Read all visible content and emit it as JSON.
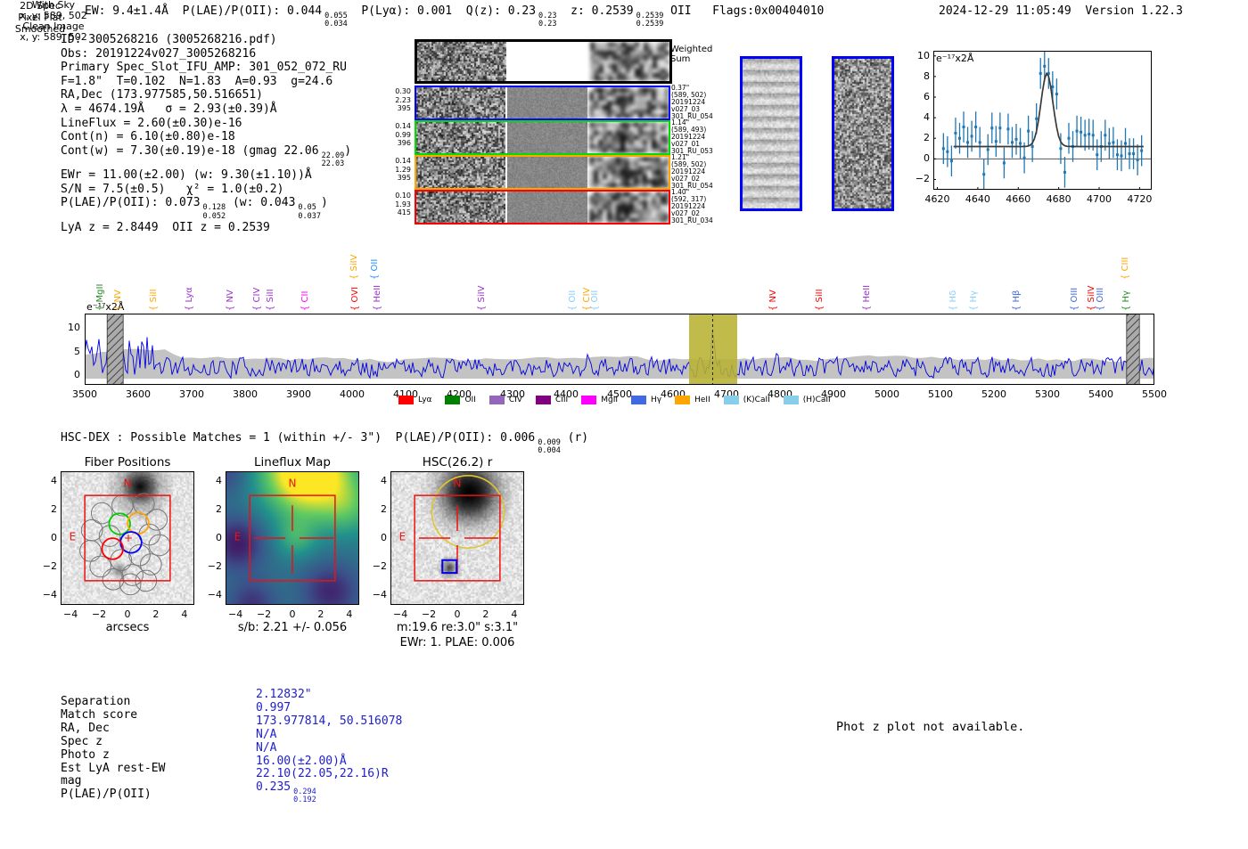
{
  "header": {
    "left_segments": [
      {
        "t": "EW: 9.4±1.4Å  P(LAE)/P(OII): 0.044"
      },
      {
        "f": [
          "0.055",
          "0.034"
        ]
      },
      {
        "t": "  P(Lyα): 0.001  Q(z): 0.23"
      },
      {
        "f": [
          "0.23",
          "0.23"
        ]
      },
      {
        "t": "  z: 0.2539"
      },
      {
        "f": [
          "0.2539",
          "0.2539"
        ]
      },
      {
        "t": " OII   Flags:0x00404010"
      }
    ],
    "right": "2024-12-29 11:05:49  Version 1.22.3"
  },
  "info": {
    "lines": [
      [
        {
          "t": "ID: 3005268216 (3005268216.pdf)"
        }
      ],
      [
        {
          "t": "Obs: 20191224v027_3005268216"
        }
      ],
      [
        {
          "t": "Primary Spec_Slot_IFU_AMP: 301_052_072_RU"
        }
      ],
      [
        {
          "t": "F=1.8\"  T=0.102  N=1.83  A=0.93  g=24.6"
        }
      ],
      [
        {
          "t": "RA,Dec (173.977585,50.516651)"
        }
      ],
      [
        {
          "t": "λ = 4674.19Å   σ = 2.93(±0.39)Å"
        }
      ],
      [
        {
          "t": "LineFlux = 2.60(±0.30)e-16"
        }
      ],
      [
        {
          "t": "Cont(n) = 6.10(±0.80)e-18"
        }
      ],
      [
        {
          "t": "Cont(w) = 7.30(±0.19)e-18 (gmag 22.06"
        },
        {
          "f": [
            "22.09",
            "22.03"
          ]
        },
        {
          "t": ")"
        }
      ],
      [
        {
          "t": "EWr = 11.00(±2.00) (w: 9.30(±1.10))Å"
        }
      ],
      [
        {
          "t": "S/N = 7.5(±0.5)   χ² = 1.0(±0.2)"
        }
      ],
      [
        {
          "t": "P(LAE)/P(OII): 0.073"
        },
        {
          "f": [
            "0.128",
            "0.052"
          ]
        },
        {
          "t": " (w: 0.043"
        },
        {
          "f": [
            "0.05",
            "0.037"
          ]
        },
        {
          "t": ")"
        }
      ],
      [
        {
          "t": "LyA z = 2.8449  OII z = 0.2539"
        }
      ]
    ]
  },
  "spec2d": {
    "col_headers": [
      "2D Spec",
      "Pixel Flat",
      "Smoothed"
    ],
    "weighted_sum_label": [
      "Weighted",
      "Sum"
    ],
    "rows": [
      {
        "color": "#0000ff",
        "left": [
          "0.30",
          "2.23",
          "395"
        ],
        "right": [
          "0.37\"",
          "(589, 502)",
          "20191224",
          "v027_03",
          "301_RU_054"
        ]
      },
      {
        "color": "#00dd00",
        "left": [
          "0.14",
          "0.99",
          "396"
        ],
        "right": [
          "1.14\"",
          "(589, 493)",
          "20191224",
          "v027_01",
          "301_RU_053"
        ]
      },
      {
        "color": "#ffa500",
        "left": [
          "0.14",
          "1.29",
          "395"
        ],
        "right": [
          "1.21\"",
          "(589, 502)",
          "20191224",
          "v027_02",
          "301_RU_054"
        ]
      },
      {
        "color": "#ff0000",
        "left": [
          "0.10",
          "1.93",
          "415"
        ],
        "right": [
          "1.40\"",
          "(592, 317)",
          "20191224",
          "v027_02",
          "301_RU_034"
        ]
      }
    ]
  },
  "sky_panels": [
    {
      "title": "With Sky",
      "coords": "x, y: 589, 502"
    },
    {
      "title": "Clean Image",
      "coords": "x, y: 589, 502"
    }
  ],
  "hsc_dex": {
    "segments": [
      {
        "t": "HSC-DEX : Possible Matches = 1 (within +/- 3\")  P(LAE)/P(OII): 0.006"
      },
      {
        "f": [
          "0.009",
          "0.004"
        ]
      },
      {
        "t": " (r)"
      }
    ]
  },
  "match_table": {
    "rows": [
      {
        "label": "Separation",
        "value": [
          {
            "t": "2.12832\""
          }
        ]
      },
      {
        "label": "Match score",
        "value": [
          {
            "t": "0.997"
          }
        ]
      },
      {
        "label": "RA, Dec",
        "value": [
          {
            "t": "173.977814, 50.516078"
          }
        ]
      },
      {
        "label": "Spec z",
        "value": [
          {
            "t": "N/A"
          }
        ]
      },
      {
        "label": "Photo z",
        "value": [
          {
            "t": "N/A"
          }
        ]
      },
      {
        "label": "Est LyA rest-EW",
        "value": [
          {
            "t": "16.00(±2.00)Å"
          }
        ]
      },
      {
        "label": "mag",
        "value": [
          {
            "t": "22.10(22.05,22.16)R"
          }
        ]
      },
      {
        "label": "P(LAE)/P(OII)",
        "value": [
          {
            "t": "0.235"
          },
          {
            "f": [
              "0.294",
              "0.192"
            ]
          }
        ]
      }
    ]
  },
  "photz_note": "Phot z plot not available.",
  "colors": {
    "value_blue": "#2020cc",
    "band_yellow": "#b8b233",
    "spectrum_blue": "#0000dd",
    "frame_red": "#ee1111",
    "circle_gold": "#e0c531",
    "north_east_red": "#ee1111",
    "fit_gray": "#3a3a3a",
    "point_blue": "#1f77b4",
    "envelope_gray": "#c3c3c3",
    "sky_border_blue": "#0000ff"
  },
  "chart_data": [
    {
      "name": "line_fit_zoom",
      "type": "scatter",
      "units_label": "e⁻¹⁷x2Å",
      "xlim": [
        4618,
        4726
      ],
      "ylim": [
        -3,
        10.5
      ],
      "xticks": [
        4620,
        4640,
        4660,
        4680,
        4700,
        4720
      ],
      "yticks": [
        -2,
        0,
        2,
        4,
        6,
        8,
        10
      ],
      "x": [
        4623,
        4625,
        4627,
        4629,
        4631,
        4633,
        4635,
        4637,
        4639,
        4641,
        4643,
        4645,
        4647,
        4649,
        4651,
        4653,
        4655,
        4657,
        4659,
        4661,
        4663,
        4665,
        4667,
        4669,
        4671,
        4673,
        4675,
        4677,
        4679,
        4681,
        4683,
        4685,
        4687,
        4689,
        4691,
        4693,
        4695,
        4697,
        4699,
        4701,
        4703,
        4705,
        4707,
        4709,
        4711,
        4713,
        4715,
        4717,
        4719,
        4721
      ],
      "y": [
        1.0,
        0.7,
        -0.2,
        2.5,
        2.0,
        3.1,
        1.6,
        2.2,
        3.1,
        1.6,
        -1.5,
        0.9,
        3.0,
        1.7,
        3.0,
        -0.4,
        2.9,
        1.6,
        1.9,
        1.5,
        0.1,
        2.7,
        1.2,
        3.9,
        8.3,
        9.0,
        8.3,
        7.0,
        6.3,
        1.0,
        -1.3,
        2.0,
        1.2,
        2.7,
        2.6,
        2.3,
        2.4,
        2.3,
        0.4,
        1.2,
        2.3,
        1.5,
        1.6,
        0.4,
        0.3,
        1.5,
        0.5,
        0.5,
        -0.1,
        0.8
      ],
      "yerr": 1.5,
      "fit": {
        "type": "gaussian",
        "center": 4674.19,
        "sigma": 2.93,
        "amplitude": 7.1,
        "baseline": 1.2
      }
    },
    {
      "name": "full_spectrum",
      "type": "line",
      "units_label": "e⁻¹⁷x2Å",
      "xlim": [
        3500,
        5500
      ],
      "ylim": [
        -2,
        13
      ],
      "xticks": [
        3500,
        3600,
        3700,
        3800,
        3900,
        4000,
        4100,
        4200,
        4300,
        4400,
        4500,
        4600,
        4700,
        4800,
        4900,
        5000,
        5100,
        5200,
        5300,
        5400,
        5500
      ],
      "yticks": [
        0,
        5,
        10
      ],
      "highlight_band": {
        "x0": 4630,
        "x1": 4720,
        "line_x": 4674.19
      },
      "hatched_bands": [
        [
          3542,
          3572
        ],
        [
          5448,
          5472
        ]
      ],
      "peak": {
        "wavelength": 4674.19,
        "height": 9.5
      },
      "emission_markers": [
        {
          "name": "MgII",
          "wavelength": 3513,
          "color": "#228B22",
          "tall": false
        },
        {
          "name": "NV",
          "wavelength": 3547,
          "color": "#ffa500",
          "tall": false
        },
        {
          "name": "SiII",
          "wavelength": 3613,
          "color": "#ffa500",
          "tall": false
        },
        {
          "name": "Lyα",
          "wavelength": 3680,
          "color": "#9932cc",
          "tall": false
        },
        {
          "name": "NV",
          "wavelength": 3757,
          "color": "#9932cc",
          "tall": false
        },
        {
          "name": "CIV",
          "wavelength": 3806,
          "color": "#9932cc",
          "tall": false
        },
        {
          "name": "SiII",
          "wavelength": 3831,
          "color": "#9932cc",
          "tall": false
        },
        {
          "name": "CII",
          "wavelength": 3896,
          "color": "#ff00ff",
          "tall": false
        },
        {
          "name": "SiIV",
          "wavelength": 3988,
          "color": "#ffa500",
          "tall": true
        },
        {
          "name": "OVI",
          "wavelength": 3990,
          "color": "#ff0000",
          "tall": false
        },
        {
          "name": "OII",
          "wavelength": 4026,
          "color": "#1e90ff",
          "tall": true
        },
        {
          "name": "HeII",
          "wavelength": 4031,
          "color": "#9932cc",
          "tall": false
        },
        {
          "name": "SiIV",
          "wavelength": 4226,
          "color": "#9932cc",
          "tall": false
        },
        {
          "name": "OII",
          "wavelength": 4396,
          "color": "#87cefa",
          "tall": false
        },
        {
          "name": "CIV",
          "wavelength": 4423,
          "color": "#ffa500",
          "tall": false
        },
        {
          "name": "OII",
          "wavelength": 4438,
          "color": "#87cefa",
          "tall": false
        },
        {
          "name": "NV",
          "wavelength": 4772,
          "color": "#ff0000",
          "tall": false
        },
        {
          "name": "SiII",
          "wavelength": 4858,
          "color": "#ff0000",
          "tall": false
        },
        {
          "name": "HeII",
          "wavelength": 4947,
          "color": "#9932cc",
          "tall": false
        },
        {
          "name": "Hδ",
          "wavelength": 5108,
          "color": "#87cefa",
          "tall": false
        },
        {
          "name": "Hγ",
          "wavelength": 5147,
          "color": "#87cefa",
          "tall": false
        },
        {
          "name": "Hβ",
          "wavelength": 5227,
          "color": "#4169e1",
          "tall": false
        },
        {
          "name": "OIII",
          "wavelength": 5335,
          "color": "#4169e1",
          "tall": false
        },
        {
          "name": "SiIV",
          "wavelength": 5367,
          "color": "#ff0000",
          "tall": false
        },
        {
          "name": "OIII",
          "wavelength": 5383,
          "color": "#4169e1",
          "tall": false
        },
        {
          "name": "CIII",
          "wavelength": 5430,
          "color": "#ffa500",
          "tall": true
        },
        {
          "name": "Hγ",
          "wavelength": 5432,
          "color": "#228B22",
          "tall": false
        }
      ],
      "legend": [
        {
          "label": "Lyα",
          "color": "#ff0000"
        },
        {
          "label": "OII",
          "color": "#008000"
        },
        {
          "label": "CIV",
          "color": "#9467bd"
        },
        {
          "label": "CIII",
          "color": "#800080"
        },
        {
          "label": "MgII",
          "color": "#ff00ff"
        },
        {
          "label": "Hγ",
          "color": "#4169e1"
        },
        {
          "label": "HeII",
          "color": "#ffa500"
        },
        {
          "label": "(K)CaII",
          "color": "#87ceeb"
        },
        {
          "label": "(H)CaII",
          "color": "#87ceeb"
        }
      ]
    },
    {
      "name": "cutouts",
      "type": "table",
      "ticks": [
        -4,
        -2,
        0,
        2,
        4
      ],
      "panels": [
        {
          "title": "Fiber Positions",
          "xlabel": "arcsecs",
          "north": "N",
          "east": "E",
          "square_arcsec": 3,
          "fibers_colored": [
            {
              "color": "#00cc00",
              "x": -0.55,
              "y": 1.0
            },
            {
              "color": "#ffa500",
              "x": 0.75,
              "y": 1.05
            },
            {
              "color": "#0000ff",
              "x": 0.25,
              "y": -0.3
            },
            {
              "color": "#ff0000",
              "x": -1.05,
              "y": -0.75
            }
          ],
          "fibers_gray": [
            [
              -1.8,
              1.75
            ],
            [
              -0.35,
              2.3
            ],
            [
              1.15,
              2.4
            ],
            [
              -2.5,
              0.55
            ],
            [
              -1.25,
              0.15
            ],
            [
              2.05,
              1.3
            ],
            [
              1.55,
              0.25
            ],
            [
              -2.6,
              -0.9
            ],
            [
              -1.9,
              -2.0
            ],
            [
              -0.45,
              -1.55
            ],
            [
              0.85,
              -1.2
            ],
            [
              2.25,
              -0.5
            ],
            [
              1.65,
              -1.85
            ],
            [
              0.35,
              -2.6
            ],
            [
              -1.0,
              -2.9
            ],
            [
              1.3,
              -3.0
            ],
            [
              0.2,
              -3.25
            ]
          ],
          "fiber_radius_arcsec": 0.74
        },
        {
          "title": "Lineflux Map",
          "xlabel": "s/b: 2.21 +/- 0.056",
          "north": "N",
          "east": "E",
          "square_arcsec": 3
        },
        {
          "title": "HSC(26.2) r",
          "xlabel": "m:19.6  re:3.0\"  s:3.1\"",
          "xlabel2": "EWr: 1. PLAE: 0.006",
          "north": "N",
          "east": "E",
          "square_arcsec": 3,
          "gold_circle": {
            "x": 0.75,
            "y": 1.85,
            "r": 2.55
          },
          "blue_square": {
            "x": -0.55,
            "y": -2.0,
            "w": 1.0,
            "h": 0.9
          }
        }
      ]
    }
  ]
}
